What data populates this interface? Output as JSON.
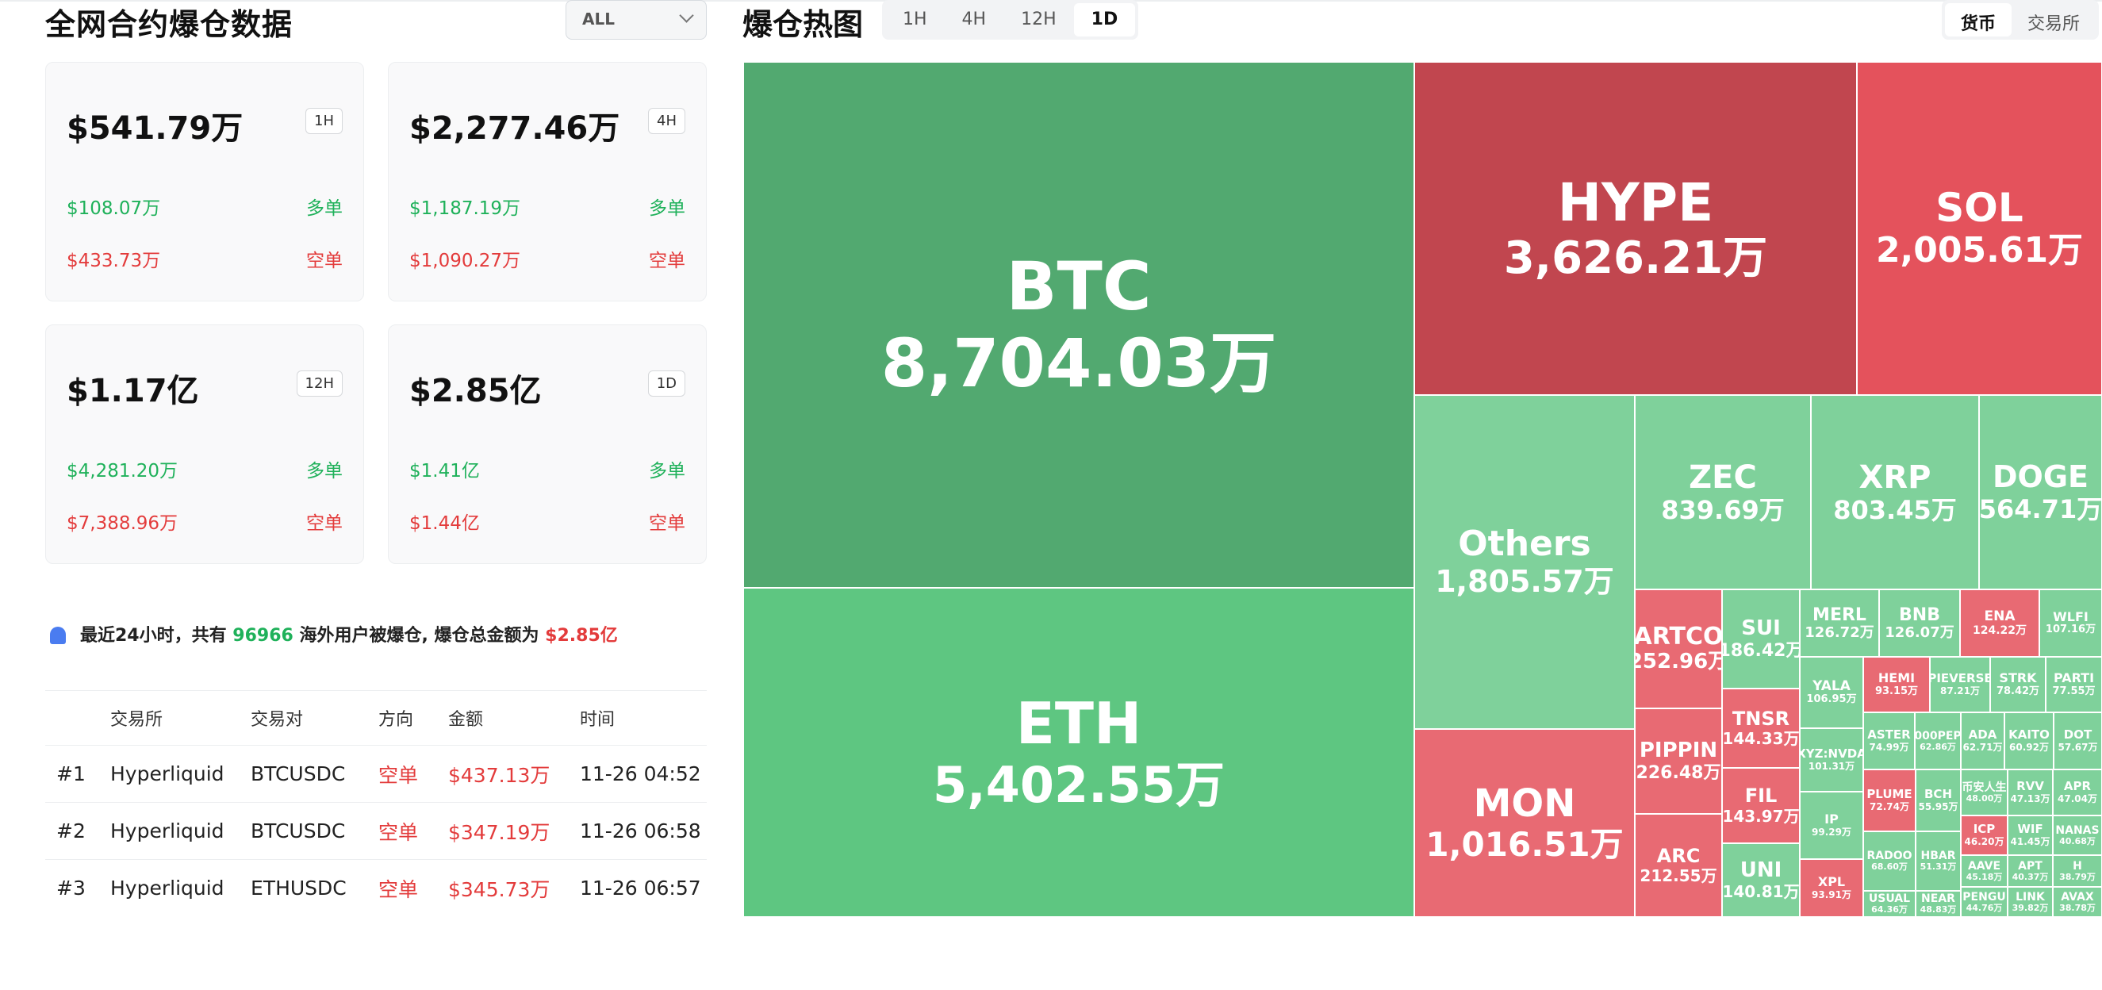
{
  "page": {
    "title": "全网合约爆仓数据",
    "exchange_select": "ALL"
  },
  "cards": [
    {
      "total": "$541.79万",
      "period": "1H",
      "long_amount": "$108.07万",
      "long_label": "多单",
      "short_amount": "$433.73万",
      "short_label": "空单"
    },
    {
      "total": "$2,277.46万",
      "period": "4H",
      "long_amount": "$1,187.19万",
      "long_label": "多单",
      "short_amount": "$1,090.27万",
      "short_label": "空单"
    },
    {
      "total": "$1.17亿",
      "period": "12H",
      "long_amount": "$4,281.20万",
      "long_label": "多单",
      "short_amount": "$7,388.96万",
      "short_label": "空单"
    },
    {
      "total": "$2.85亿",
      "period": "1D",
      "long_amount": "$1.41亿",
      "long_label": "多单",
      "short_amount": "$1.44亿",
      "short_label": "空单"
    }
  ],
  "notice": {
    "prefix": "最近24小时，共有 ",
    "count": "96966",
    "middle": " 海外用户被爆仓, 爆仓总金额为 ",
    "amount": "$2.85亿"
  },
  "table": {
    "headers": [
      "",
      "交易所",
      "交易对",
      "方向",
      "金额",
      "时间"
    ],
    "rows": [
      [
        "#1",
        "Hyperliquid",
        "BTCUSDC",
        "空单",
        "$437.13万",
        "11-26 04:52"
      ],
      [
        "#2",
        "Hyperliquid",
        "BTCUSDC",
        "空单",
        "$347.19万",
        "11-26 06:58"
      ],
      [
        "#3",
        "Hyperliquid",
        "ETHUSDC",
        "空单",
        "$345.73万",
        "11-26 06:57"
      ]
    ]
  },
  "heatmap": {
    "title": "爆仓热图",
    "timeframes": [
      "1H",
      "4H",
      "12H",
      "1D"
    ],
    "active_timeframe": "1D",
    "modes": [
      "货币",
      "交易所"
    ],
    "active_mode": "货币",
    "colors": {
      "long_dark": "#52a970",
      "long": "#5ec681",
      "long_light": "#7fd19b",
      "short_dark": "#c1464f",
      "short": "#e4525c",
      "short_light": "#e86a73"
    },
    "tiles": [
      {
        "name": "BTC",
        "value": "8,704.03万",
        "side": "long_dark"
      },
      {
        "name": "ETH",
        "value": "5,402.55万",
        "side": "long"
      },
      {
        "name": "HYPE",
        "value": "3,626.21万",
        "side": "short_dark"
      },
      {
        "name": "SOL",
        "value": "2,005.61万",
        "side": "short"
      },
      {
        "name": "Others",
        "value": "1,805.57万",
        "side": "long_light"
      },
      {
        "name": "MON",
        "value": "1,016.51万",
        "side": "short_light"
      },
      {
        "name": "ZEC",
        "value": "839.69万",
        "side": "long_light"
      },
      {
        "name": "XRP",
        "value": "803.45万",
        "side": "long_light"
      },
      {
        "name": "DOGE",
        "value": "564.71万",
        "side": "long_light"
      },
      {
        "name": "ARTCO",
        "value": "252.96万",
        "side": "short_light"
      },
      {
        "name": "SUI",
        "value": "186.42万",
        "side": "long_light"
      },
      {
        "name": "TNSR",
        "value": "144.33万",
        "side": "short_light"
      },
      {
        "name": "FIL",
        "value": "143.97万",
        "side": "short_light"
      },
      {
        "name": "PIPPIN",
        "value": "226.48万",
        "side": "short_light"
      },
      {
        "name": "ARC",
        "value": "212.55万",
        "side": "short_light"
      },
      {
        "name": "UNI",
        "value": "140.81万",
        "side": "long_light"
      },
      {
        "name": "MERL",
        "value": "126.72万",
        "side": "long_light"
      },
      {
        "name": "BNB",
        "value": "126.07万",
        "side": "long_light"
      },
      {
        "name": "ENA",
        "value": "124.22万",
        "side": "short_light"
      },
      {
        "name": "WLFI",
        "value": "107.16万",
        "side": "long_light"
      },
      {
        "name": "YALA",
        "value": "106.95万",
        "side": "long_light"
      },
      {
        "name": "HEMI",
        "value": "93.15万",
        "side": "short_light"
      },
      {
        "name": "PIEVERSE",
        "value": "87.21万",
        "side": "long_light"
      },
      {
        "name": "STRK",
        "value": "78.42万",
        "side": "long_light"
      },
      {
        "name": "PARTI",
        "value": "77.55万",
        "side": "long_light"
      },
      {
        "name": "XYZ:NVDA",
        "value": "101.31万",
        "side": "long_light"
      },
      {
        "name": "ASTER",
        "value": "74.99万",
        "side": "long_light"
      },
      {
        "name": "000PEP",
        "value": "62.86万",
        "side": "long_light"
      },
      {
        "name": "ADA",
        "value": "62.71万",
        "side": "long_light"
      },
      {
        "name": "KAITO",
        "value": "60.92万",
        "side": "long_light"
      },
      {
        "name": "DOT",
        "value": "57.67万",
        "side": "long_light"
      },
      {
        "name": "PLUME",
        "value": "72.74万",
        "side": "short_light"
      },
      {
        "name": "BCH",
        "value": "55.95万",
        "side": "long_light"
      },
      {
        "name": "币安人生",
        "value": "48.00万",
        "side": "long_light"
      },
      {
        "name": "RVV",
        "value": "47.13万",
        "side": "long_light"
      },
      {
        "name": "APR",
        "value": "47.04万",
        "side": "long_light"
      },
      {
        "name": "IP",
        "value": "99.29万",
        "side": "long_light"
      },
      {
        "name": "RADOO",
        "value": "68.60万",
        "side": "long_light"
      },
      {
        "name": "HBAR",
        "value": "51.31万",
        "side": "long_light"
      },
      {
        "name": "ICP",
        "value": "46.20万",
        "side": "short_light"
      },
      {
        "name": "WIF",
        "value": "41.45万",
        "side": "long_light"
      },
      {
        "name": "NANAS",
        "value": "40.68万",
        "side": "long_light"
      },
      {
        "name": "AAVE",
        "value": "45.18万",
        "side": "long_light"
      },
      {
        "name": "APT",
        "value": "40.37万",
        "side": "long_light"
      },
      {
        "name": "H",
        "value": "38.79万",
        "side": "long_light"
      },
      {
        "name": "XPL",
        "value": "93.91万",
        "side": "short_light"
      },
      {
        "name": "USUAL",
        "value": "64.36万",
        "side": "long_light"
      },
      {
        "name": "NEAR",
        "value": "48.83万",
        "side": "long_light"
      },
      {
        "name": "PENGU",
        "value": "44.76万",
        "side": "long_light"
      },
      {
        "name": "LINK",
        "value": "39.82万",
        "side": "long_light"
      },
      {
        "name": "AVAX",
        "value": "38.78万",
        "side": "long_light"
      }
    ]
  }
}
